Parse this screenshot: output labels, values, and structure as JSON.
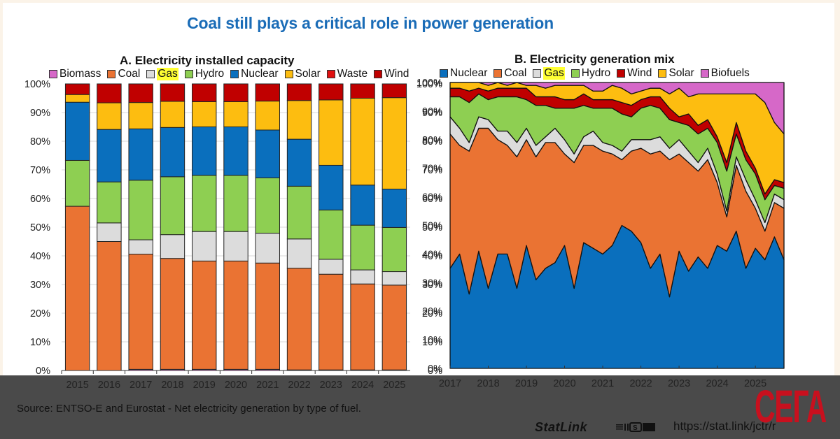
{
  "headline": "Coal still plays a critical role in power generation",
  "footer": {
    "source": "Source: ENTSO-E and Eurostat - Net electricity generation by type of fuel.",
    "statlink_label": "StatLink",
    "statlink_url": "https://stat.link/jctr/r",
    "brand": "СЕГА"
  },
  "colors": {
    "Biomass": "#d668c8",
    "Biofuels": "#d668c8",
    "Coal": "#ea7333",
    "Gas": "#dcdcdc",
    "Hydro": "#8ecf52",
    "Nuclear": "#0a6fbd",
    "Solar": "#fdbd10",
    "Waste": "#e01010",
    "Wind": "#c00000",
    "headline": "#1a6cb7",
    "gas_highlight": "#ffff33"
  },
  "chart_data": [
    {
      "type": "bar",
      "stacked": true,
      "title": "A. Electricity installed capacity",
      "legend": [
        "Biomass",
        "Coal",
        "Gas",
        "Hydro",
        "Nuclear",
        "Solar",
        "Waste",
        "Wind"
      ],
      "legend_placement": "top",
      "highlighted_legend_item": "Gas",
      "categories": [
        "2015",
        "2016",
        "2017",
        "2018",
        "2019",
        "2020",
        "2021",
        "2022",
        "2023",
        "2024",
        "2025"
      ],
      "series": [
        {
          "name": "Biomass",
          "values": [
            0.0,
            0.0,
            0.4,
            0.4,
            0.4,
            0.4,
            0.4,
            0.2,
            0.2,
            0.2,
            0.2
          ]
        },
        {
          "name": "Coal",
          "values": [
            57.3,
            45.0,
            40.2,
            38.7,
            37.8,
            37.8,
            37.1,
            35.5,
            33.4,
            30.0,
            29.6
          ]
        },
        {
          "name": "Gas",
          "values": [
            0.0,
            6.5,
            5.0,
            8.3,
            10.3,
            10.3,
            10.4,
            10.2,
            5.2,
            4.9,
            4.7
          ]
        },
        {
          "name": "Hydro",
          "values": [
            16.0,
            14.3,
            20.8,
            20.2,
            19.6,
            19.6,
            19.3,
            18.4,
            17.2,
            15.6,
            15.4
          ]
        },
        {
          "name": "Nuclear",
          "values": [
            20.3,
            18.3,
            17.9,
            17.2,
            16.9,
            16.9,
            16.7,
            16.4,
            15.6,
            14.0,
            13.4
          ]
        },
        {
          "name": "Solar",
          "values": [
            2.7,
            9.3,
            9.2,
            9.1,
            8.8,
            8.8,
            10.1,
            13.5,
            22.8,
            30.3,
            31.9
          ]
        },
        {
          "name": "Waste",
          "values": [
            0,
            0,
            0,
            0,
            0,
            0,
            0,
            0,
            0,
            0,
            0
          ]
        },
        {
          "name": "Wind",
          "values": [
            3.7,
            6.6,
            6.5,
            6.1,
            6.2,
            6.2,
            6.0,
            5.8,
            5.6,
            5.0,
            4.8
          ]
        }
      ],
      "ylim": [
        0,
        100
      ],
      "yticks": [
        "0%",
        "10%",
        "20%",
        "30%",
        "40%",
        "50%",
        "60%",
        "70%",
        "80%",
        "90%",
        "100%"
      ],
      "grid": true,
      "ylabel_sides": "both"
    },
    {
      "type": "area",
      "stacked": true,
      "title": "B. Electricity generation mix",
      "legend": [
        "Nuclear",
        "Coal",
        "Gas",
        "Hydro",
        "Wind",
        "Solar",
        "Biofuels"
      ],
      "legend_placement": "top",
      "highlighted_legend_item": "Gas",
      "x_start": "2017-01",
      "x_frequency": "monthly",
      "x_ticks": [
        "2017",
        "2018",
        "2019",
        "2020",
        "2021",
        "2022",
        "2023",
        "2024",
        "2025"
      ],
      "x": [
        "2017-01",
        "2017-04",
        "2017-07",
        "2017-10",
        "2018-01",
        "2018-04",
        "2018-07",
        "2018-10",
        "2019-01",
        "2019-04",
        "2019-07",
        "2019-10",
        "2020-01",
        "2020-04",
        "2020-07",
        "2020-10",
        "2021-01",
        "2021-04",
        "2021-07",
        "2021-10",
        "2022-01",
        "2022-04",
        "2022-07",
        "2022-10",
        "2023-01",
        "2023-04",
        "2023-07",
        "2023-10",
        "2024-01",
        "2024-04",
        "2024-07",
        "2024-10",
        "2025-01",
        "2025-04",
        "2025-07",
        "2025-09"
      ],
      "series": [
        {
          "name": "Nuclear",
          "values": [
            35,
            40,
            26,
            41,
            28,
            40,
            40,
            28,
            43,
            31,
            35,
            37,
            43,
            28,
            44,
            42,
            40,
            43,
            50,
            48,
            44,
            35,
            40,
            25,
            41,
            34,
            39,
            35,
            43,
            41,
            48,
            35,
            42,
            38,
            46,
            38
          ]
        },
        {
          "name": "Coal",
          "values": [
            47,
            38,
            50,
            43,
            56,
            40,
            38,
            46,
            37,
            43,
            44,
            42,
            32,
            44,
            34,
            36,
            36,
            32,
            23,
            28,
            33,
            40,
            36,
            48,
            34,
            38,
            30,
            38,
            22,
            12,
            23,
            27,
            14,
            10,
            12,
            18
          ]
        },
        {
          "name": "Gas",
          "values": [
            6,
            6,
            3,
            4,
            3,
            3,
            5,
            5,
            4,
            4,
            2,
            5,
            5,
            3,
            3,
            5,
            3,
            3,
            3,
            4,
            3,
            5,
            5,
            4,
            5,
            4,
            3,
            4,
            3,
            2,
            3,
            4,
            3,
            3,
            3,
            3
          ]
        },
        {
          "name": "Hydro",
          "values": [
            7,
            11,
            14,
            8,
            7,
            12,
            12,
            16,
            10,
            14,
            11,
            7,
            11,
            16,
            11,
            8,
            12,
            13,
            13,
            8,
            11,
            12,
            10,
            10,
            6,
            9,
            10,
            7,
            11,
            14,
            8,
            7,
            9,
            8,
            3,
            4
          ]
        },
        {
          "name": "Wind",
          "values": [
            3,
            3,
            4,
            2,
            3,
            3,
            3,
            3,
            4,
            3,
            3,
            4,
            3,
            3,
            4,
            3,
            3,
            3,
            4,
            4,
            3,
            3,
            4,
            4,
            2,
            4,
            3,
            3,
            2,
            3,
            4,
            3,
            2,
            2,
            2,
            2
          ]
        },
        {
          "name": "Solar",
          "values": [
            2,
            2,
            3,
            2,
            2,
            2,
            1,
            2,
            1,
            4,
            3,
            4,
            5,
            5,
            3,
            3,
            3,
            5,
            5,
            4,
            3,
            3,
            3,
            5,
            10,
            6,
            11,
            9,
            15,
            24,
            10,
            20,
            26,
            32,
            20,
            17
          ]
        },
        {
          "name": "Biofuels",
          "values": [
            0,
            0,
            0,
            0,
            1,
            0,
            1,
            0,
            1,
            1,
            2,
            1,
            1,
            1,
            1,
            3,
            3,
            1,
            2,
            4,
            3,
            2,
            2,
            4,
            2,
            5,
            4,
            4,
            4,
            4,
            4,
            4,
            4,
            7,
            14,
            18
          ]
        }
      ],
      "ylim": [
        0,
        100
      ],
      "yticks": [
        "0%",
        "10%",
        "20%",
        "30%",
        "40%",
        "50%",
        "60%",
        "70%",
        "80%",
        "90%",
        "100%"
      ],
      "grid": false
    }
  ]
}
